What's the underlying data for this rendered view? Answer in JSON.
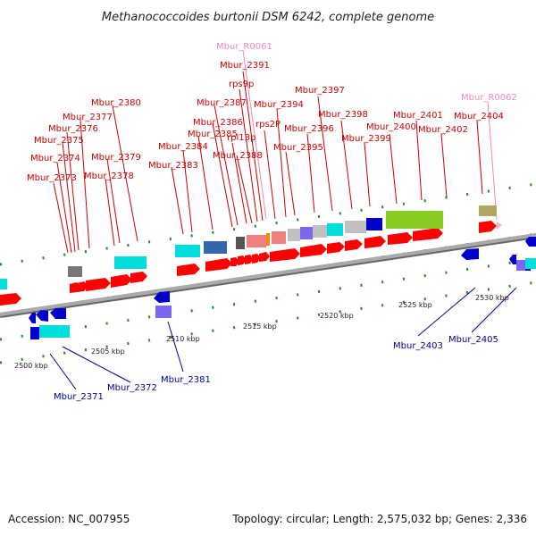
{
  "title": "Methanococcoides burtonii DSM 6242, complete genome",
  "footer": {
    "accession": "Accession: NC_007955",
    "topology": "Topology: circular; Length: 2,575,032 bp; Genes: 2,336"
  },
  "colors": {
    "gene_forward": "#ff0000",
    "gene_reverse": "#0000cc",
    "label_forward": "#cc0000",
    "label_reverse": "#000099",
    "label_rna": "#ee88bb",
    "backbone": "#999999"
  },
  "ruler_labels": [
    "2500 kbp",
    "2505 kbp",
    "2510 kbp",
    "2515 kbp",
    "2520 kbp",
    "2525 kbp",
    "2530 kbp"
  ],
  "upper_labels": [
    "Mbur_R0061",
    "Mbur_2391",
    "rps9p",
    "Mbur_2387",
    "Mbur_2394",
    "Mbur_2397",
    "Mbur_R0062",
    "Mbur_2380",
    "Mbur_2386",
    "rps2P",
    "Mbur_2398",
    "Mbur_2401",
    "Mbur_2404",
    "Mbur_2377",
    "Mbur_2385",
    "rpl13p",
    "Mbur_2396",
    "Mbur_2400",
    "Mbur_2376",
    "Mbur_2402",
    "Mbur_2375",
    "Mbur_2384",
    "Mbur_2399",
    "Mbur_2395",
    "Mbur_2388",
    "Mbur_2374",
    "Mbur_2379",
    "Mbur_2383",
    "Mbur_2373",
    "Mbur_2378"
  ],
  "lower_labels": [
    "Mbur_2403",
    "Mbur_2405",
    "Mbur_2381",
    "Mbur_2372",
    "Mbur_2371"
  ]
}
